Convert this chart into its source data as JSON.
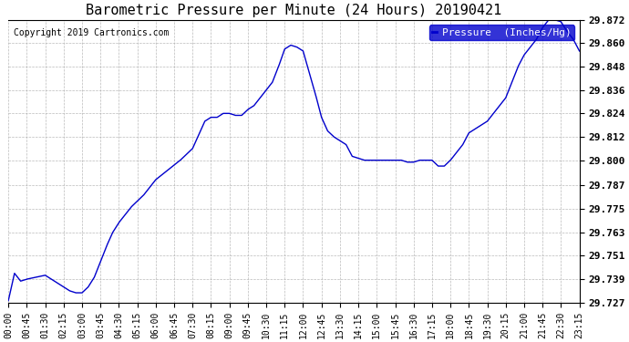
{
  "title": "Barometric Pressure per Minute (24 Hours) 20190421",
  "copyright": "Copyright 2019 Cartronics.com",
  "legend_label": "Pressure  (Inches/Hg)",
  "line_color": "#0000CC",
  "legend_bg": "#0000CC",
  "legend_fg": "#FFFFFF",
  "background_color": "#FFFFFF",
  "grid_color": "#AAAAAA",
  "ylim": [
    29.727,
    29.872
  ],
  "yticks": [
    29.727,
    29.739,
    29.751,
    29.763,
    29.775,
    29.787,
    29.8,
    29.812,
    29.824,
    29.836,
    29.848,
    29.86,
    29.872
  ],
  "xtick_labels": [
    "00:00",
    "00:45",
    "01:30",
    "02:15",
    "03:00",
    "03:45",
    "04:30",
    "05:15",
    "06:00",
    "06:45",
    "07:30",
    "08:15",
    "09:00",
    "09:45",
    "10:30",
    "11:15",
    "12:00",
    "12:45",
    "13:30",
    "14:15",
    "15:00",
    "15:45",
    "16:30",
    "17:15",
    "18:00",
    "18:45",
    "19:30",
    "20:15",
    "21:00",
    "21:45",
    "22:30",
    "23:15"
  ],
  "control_points": [
    [
      0,
      29.728
    ],
    [
      15,
      29.742
    ],
    [
      30,
      29.738
    ],
    [
      45,
      29.739
    ],
    [
      90,
      29.741
    ],
    [
      135,
      29.735
    ],
    [
      150,
      29.733
    ],
    [
      165,
      29.732
    ],
    [
      180,
      29.732
    ],
    [
      195,
      29.735
    ],
    [
      210,
      29.74
    ],
    [
      225,
      29.748
    ],
    [
      240,
      29.756
    ],
    [
      255,
      29.763
    ],
    [
      270,
      29.768
    ],
    [
      300,
      29.776
    ],
    [
      330,
      29.782
    ],
    [
      360,
      29.79
    ],
    [
      390,
      29.795
    ],
    [
      420,
      29.8
    ],
    [
      450,
      29.806
    ],
    [
      480,
      29.82
    ],
    [
      495,
      29.822
    ],
    [
      510,
      29.822
    ],
    [
      525,
      29.824
    ],
    [
      540,
      29.824
    ],
    [
      555,
      29.823
    ],
    [
      570,
      29.823
    ],
    [
      585,
      29.826
    ],
    [
      600,
      29.828
    ],
    [
      615,
      29.832
    ],
    [
      630,
      29.836
    ],
    [
      645,
      29.84
    ],
    [
      660,
      29.848
    ],
    [
      675,
      29.857
    ],
    [
      690,
      29.859
    ],
    [
      705,
      29.858
    ],
    [
      720,
      29.856
    ],
    [
      735,
      29.845
    ],
    [
      750,
      29.834
    ],
    [
      765,
      29.822
    ],
    [
      780,
      29.815
    ],
    [
      795,
      29.812
    ],
    [
      810,
      29.81
    ],
    [
      825,
      29.808
    ],
    [
      840,
      29.802
    ],
    [
      855,
      29.801
    ],
    [
      870,
      29.8
    ],
    [
      885,
      29.8
    ],
    [
      900,
      29.8
    ],
    [
      915,
      29.8
    ],
    [
      930,
      29.8
    ],
    [
      945,
      29.8
    ],
    [
      960,
      29.8
    ],
    [
      975,
      29.799
    ],
    [
      990,
      29.799
    ],
    [
      1005,
      29.8
    ],
    [
      1020,
      29.8
    ],
    [
      1035,
      29.8
    ],
    [
      1050,
      29.797
    ],
    [
      1065,
      29.797
    ],
    [
      1080,
      29.8
    ],
    [
      1095,
      29.804
    ],
    [
      1110,
      29.808
    ],
    [
      1125,
      29.814
    ],
    [
      1140,
      29.816
    ],
    [
      1155,
      29.818
    ],
    [
      1170,
      29.82
    ],
    [
      1185,
      29.824
    ],
    [
      1200,
      29.828
    ],
    [
      1215,
      29.832
    ],
    [
      1230,
      29.84
    ],
    [
      1245,
      29.848
    ],
    [
      1260,
      29.854
    ],
    [
      1275,
      29.858
    ],
    [
      1290,
      29.862
    ],
    [
      1305,
      29.868
    ],
    [
      1320,
      29.872
    ],
    [
      1335,
      29.872
    ],
    [
      1350,
      29.871
    ],
    [
      1365,
      29.866
    ],
    [
      1380,
      29.862
    ],
    [
      1395,
      29.856
    ]
  ]
}
